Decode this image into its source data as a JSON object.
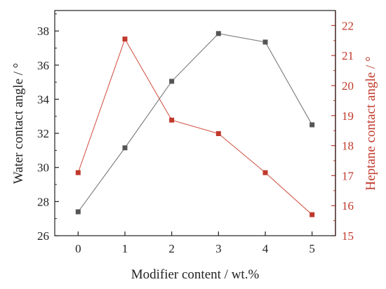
{
  "chart_data": {
    "type": "line",
    "xlabel": "Modifier content / wt.%",
    "ylabel_left": "Water contact angle / °",
    "ylabel_right": "Heptane contact angle / °",
    "x": [
      0,
      1,
      2,
      3,
      4,
      5
    ],
    "xlim": [
      -0.5,
      5.5
    ],
    "x_ticks": [
      0,
      1,
      2,
      3,
      4,
      5
    ],
    "ylim_left": [
      26,
      39.2
    ],
    "y_ticks_left": [
      26,
      28,
      30,
      32,
      34,
      36,
      38
    ],
    "ylim_right": [
      15,
      22.5
    ],
    "y_ticks_right": [
      15,
      16,
      17,
      18,
      19,
      20,
      21,
      22
    ],
    "grid": false,
    "series": [
      {
        "axis": "left",
        "values": [
          27.4,
          31.15,
          35.05,
          37.85,
          37.35,
          32.5
        ],
        "color": "#555555",
        "line_color": "#7a7a7a"
      },
      {
        "axis": "right",
        "values": [
          17.1,
          21.55,
          18.85,
          18.4,
          17.1,
          15.7
        ],
        "color": "#c0392b",
        "line_color": "#d2584a"
      }
    ]
  }
}
